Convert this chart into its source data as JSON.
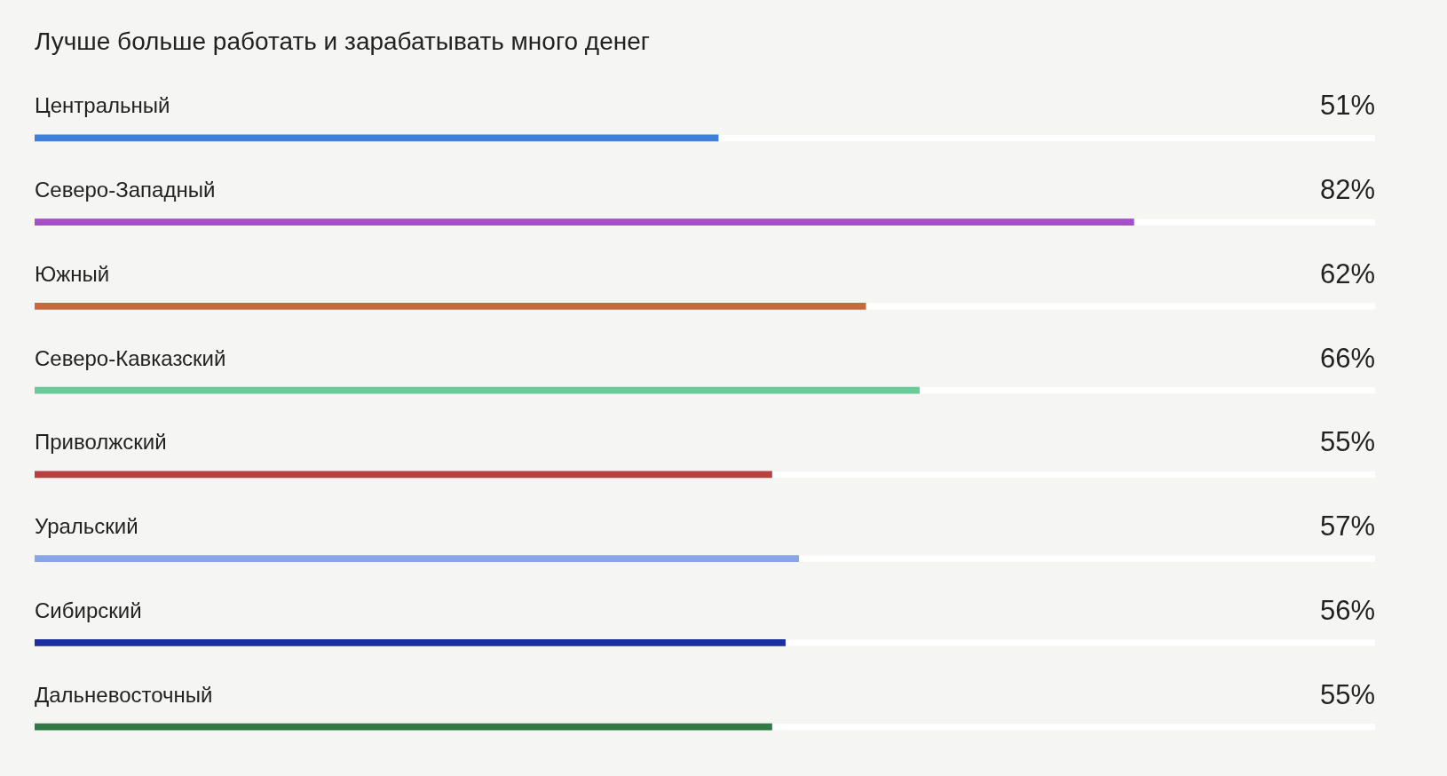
{
  "chart_data": {
    "type": "bar",
    "orientation": "horizontal",
    "title": "Лучше больше работать и зарабатывать много денег",
    "categories": [
      "Центральный",
      "Северо-Западный",
      "Южный",
      "Северо-Кавказский",
      "Приволжский",
      "Уральский",
      "Сибирский",
      "Дальневосточный"
    ],
    "values": [
      51,
      82,
      62,
      66,
      55,
      57,
      56,
      55
    ],
    "value_labels": [
      "51%",
      "82%",
      "62%",
      "66%",
      "55%",
      "57%",
      "56%",
      "55%"
    ],
    "colors": [
      "#3d7fd9",
      "#a54fc4",
      "#c8683e",
      "#6bc99a",
      "#b84040",
      "#88a5e8",
      "#1a2ea0",
      "#2f7a45"
    ],
    "xlim": [
      0,
      100
    ]
  }
}
